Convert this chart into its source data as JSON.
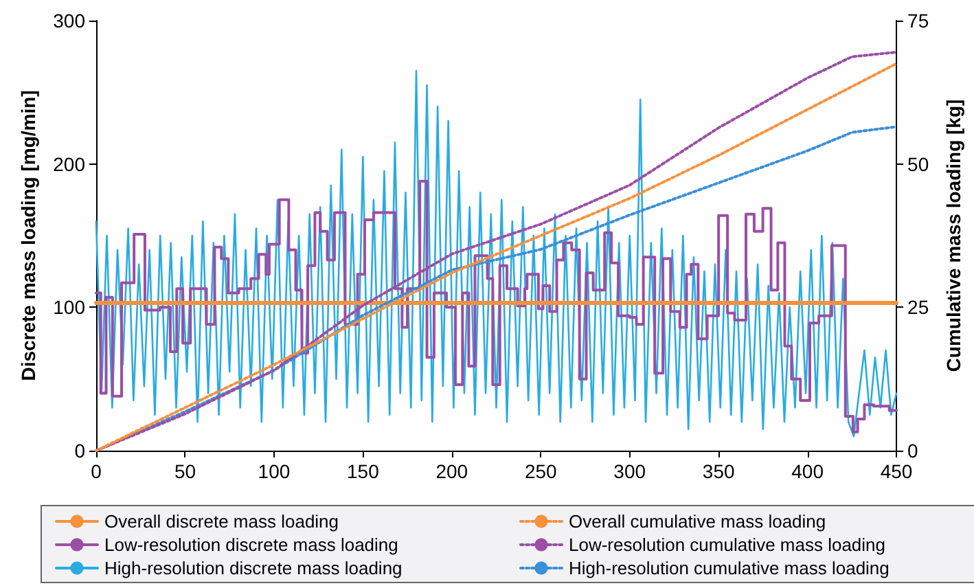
{
  "chart_data": {
    "type": "line",
    "xlim": [
      0,
      450
    ],
    "xticks": [
      0,
      50,
      100,
      150,
      200,
      250,
      300,
      350,
      400,
      450
    ],
    "ylim": [
      0,
      300
    ],
    "yticks": [
      0,
      100,
      200,
      300
    ],
    "y2lim": [
      0,
      75
    ],
    "y2ticks": [
      0,
      25,
      50,
      75
    ],
    "ylabel": "Discrete mass loading [mg/min]",
    "y2label": "Cumulative mass loading [kg]",
    "grid": false,
    "legend": "bottom",
    "marker": "none",
    "series": [
      {
        "name": "High-resolution discrete mass loading",
        "color": "#29abe2",
        "line_style": "solid",
        "x": [
          0,
          3,
          6,
          9,
          12,
          15,
          18,
          21,
          24,
          27,
          30,
          33,
          36,
          39,
          42,
          45,
          48,
          51,
          54,
          57,
          60,
          63,
          66,
          69,
          72,
          75,
          78,
          81,
          84,
          87,
          90,
          93,
          96,
          99,
          102,
          105,
          108,
          111,
          114,
          117,
          120,
          123,
          126,
          129,
          132,
          135,
          138,
          141,
          144,
          147,
          150,
          153,
          156,
          159,
          162,
          165,
          168,
          171,
          174,
          177,
          180,
          183,
          186,
          189,
          192,
          195,
          198,
          201,
          204,
          207,
          210,
          213,
          216,
          219,
          222,
          225,
          228,
          231,
          234,
          237,
          240,
          243,
          246,
          249,
          252,
          255,
          258,
          261,
          264,
          267,
          270,
          273,
          276,
          279,
          282,
          285,
          288,
          291,
          294,
          297,
          300,
          303,
          306,
          309,
          312,
          315,
          318,
          321,
          324,
          327,
          330,
          333,
          336,
          339,
          342,
          345,
          348,
          351,
          354,
          357,
          360,
          363,
          366,
          369,
          372,
          375,
          378,
          381,
          384,
          387,
          390,
          393,
          396,
          399,
          402,
          405,
          408,
          411,
          414,
          417,
          420,
          423,
          426,
          429,
          432,
          435,
          438,
          441,
          444,
          447,
          450
        ],
        "values": [
          160,
          40,
          150,
          30,
          140,
          60,
          155,
          35,
          130,
          45,
          140,
          25,
          150,
          50,
          145,
          30,
          135,
          55,
          150,
          20,
          160,
          40,
          145,
          25,
          150,
          55,
          165,
          30,
          140,
          45,
          155,
          20,
          150,
          50,
          175,
          30,
          160,
          45,
          150,
          25,
          165,
          40,
          170,
          20,
          185,
          50,
          210,
          30,
          165,
          40,
          205,
          20,
          175,
          45,
          195,
          25,
          215,
          40,
          180,
          30,
          265,
          35,
          255,
          20,
          240,
          45,
          230,
          30,
          195,
          40,
          170,
          25,
          180,
          40,
          165,
          30,
          175,
          20,
          160,
          45,
          170,
          35,
          150,
          25,
          155,
          40,
          165,
          20,
          150,
          30,
          155,
          35,
          145,
          20,
          160,
          40,
          170,
          25,
          145,
          30,
          150,
          35,
          245,
          20,
          145,
          40,
          155,
          25,
          140,
          30,
          150,
          15,
          135,
          35,
          125,
          20,
          130,
          30,
          140,
          25,
          125,
          20,
          120,
          35,
          130,
          15,
          115,
          30,
          110,
          20,
          100,
          30,
          125,
          40,
          140,
          30,
          150,
          35,
          145,
          30,
          120,
          20,
          10,
          40,
          70,
          25,
          65,
          30,
          70,
          25,
          40
        ]
      },
      {
        "name": "Low-resolution discrete mass loading",
        "color": "#9b4ea6",
        "type": "step",
        "line_style": "solid",
        "x": [
          0,
          2.6,
          5.6,
          9.2,
          14.3,
          21.3,
          27.4,
          35.9,
          41.7,
          45.3,
          48.7,
          53,
          62,
          66.6,
          70.4,
          74.3,
          80.2,
          87,
          91.4,
          95.5,
          97.3,
          103,
          108.3,
          112.2,
          115.7,
          119,
          123,
          126,
          130,
          134,
          140,
          147,
          151,
          156,
          168,
          172,
          175,
          182,
          186,
          190,
          197,
          202,
          206,
          209.5,
          213,
          220,
          223,
          227,
          231,
          237,
          241,
          242.3,
          248.7,
          251.3,
          255,
          259,
          262.8,
          267.4,
          271.8,
          275.6,
          279.5,
          285.9,
          289.7,
          293.6,
          300,
          303.8,
          307.7,
          314.1,
          318.7,
          323,
          328.2,
          332,
          334.6,
          338.5,
          343.6,
          350,
          355,
          359,
          365.4,
          370,
          374.9,
          379.5,
          383.3,
          387.2,
          391,
          396,
          401.3,
          406.4,
          413.6,
          421.3,
          425.6,
          428.2,
          432,
          437.2,
          446,
          450
        ],
        "values": [
          110,
          40,
          107,
          38,
          117,
          151,
          98,
          100,
          69,
          113,
          75,
          113,
          88,
          142,
          134,
          110,
          113,
          120,
          137,
          123,
          144,
          175,
          140,
          112,
          68,
          129,
          166,
          153,
          133,
          166,
          88,
          123,
          161,
          166,
          113,
          86,
          113,
          188,
          65,
          110,
          100,
          46,
          110,
          59,
          136,
          120,
          46,
          129,
          113,
          101,
          113,
          123,
          99,
          115,
          97,
          133,
          145,
          140,
          50,
          124,
          112,
          152,
          131,
          94,
          93,
          88,
          135,
          54,
          134,
          97,
          86,
          123,
          130,
          78,
          94,
          164,
          96,
          91,
          165,
          153,
          169,
          112,
          145,
          73,
          50,
          35,
          89,
          94,
          143,
          24,
          13,
          22,
          32,
          31,
          28,
          28
        ]
      },
      {
        "name": "Overall discrete mass loading",
        "color": "#f7913d",
        "line_style": "solid",
        "x": [
          0,
          450
        ],
        "values": [
          103,
          103
        ]
      },
      {
        "name": "High-resolution cumulative mass loading",
        "color": "#3a8fd9",
        "axis": "y2",
        "line_style": "dotted",
        "x": [
          0,
          50,
          100,
          150,
          200,
          250,
          300,
          350,
          400,
          425,
          450
        ],
        "values": [
          0,
          6.8,
          14,
          23.6,
          31.5,
          35.1,
          41.1,
          46.7,
          52.3,
          55.5,
          56.5
        ]
      },
      {
        "name": "Low-resolution cumulative mass loading",
        "color": "#9b4ea6",
        "axis": "y2",
        "line_style": "dotted",
        "x": [
          0,
          50,
          100,
          150,
          200,
          250,
          300,
          350,
          400,
          425,
          450
        ],
        "values": [
          0,
          6.4,
          14,
          25.3,
          34.3,
          39.5,
          46.3,
          56.3,
          65,
          68.7,
          69.5
        ]
      },
      {
        "name": "Overall cumulative mass loading",
        "color": "#f7913d",
        "axis": "y2",
        "line_style": "dotted",
        "x": [
          0,
          100,
          200,
          300,
          350,
          400,
          450
        ],
        "values": [
          0,
          15,
          31,
          44,
          51.5,
          59.5,
          67.5
        ]
      }
    ]
  }
}
